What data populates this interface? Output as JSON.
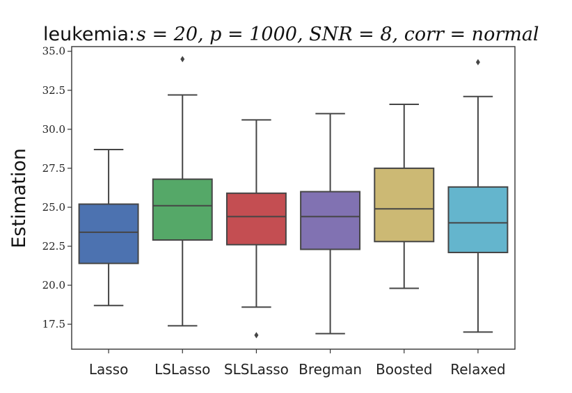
{
  "chart_data": {
    "type": "box",
    "title_prefix": "leukemia:",
    "title_math": "s = 20, p = 1000, SNR = 8, corr = normal",
    "xlabel": "",
    "ylabel": "Estimation",
    "ylim": [
      15.9,
      35.3
    ],
    "yticks": [
      "17.5",
      "20.0",
      "22.5",
      "25.0",
      "27.5",
      "30.0",
      "32.5",
      "35.0"
    ],
    "grid": false,
    "categories": [
      "Lasso",
      "LSLasso",
      "SLSLasso",
      "Bregman",
      "Boosted",
      "Relaxed"
    ],
    "colors": [
      "#4c72b0",
      "#55a868",
      "#c44e52",
      "#8172b2",
      "#ccb974",
      "#64b5cd"
    ],
    "boxes": [
      {
        "whisker_low": 18.7,
        "q1": 21.4,
        "median": 23.4,
        "q3": 25.2,
        "whisker_high": 28.7,
        "outliers": []
      },
      {
        "whisker_low": 17.4,
        "q1": 22.9,
        "median": 25.1,
        "q3": 26.8,
        "whisker_high": 32.2,
        "outliers": [
          34.5
        ]
      },
      {
        "whisker_low": 18.6,
        "q1": 22.6,
        "median": 24.4,
        "q3": 25.9,
        "whisker_high": 30.6,
        "outliers": [
          16.8
        ]
      },
      {
        "whisker_low": 16.9,
        "q1": 22.3,
        "median": 24.4,
        "q3": 26.0,
        "whisker_high": 31.0,
        "outliers": []
      },
      {
        "whisker_low": 19.8,
        "q1": 22.8,
        "median": 24.9,
        "q3": 27.5,
        "whisker_high": 31.6,
        "outliers": []
      },
      {
        "whisker_low": 17.0,
        "q1": 22.1,
        "median": 24.0,
        "q3": 26.3,
        "whisker_high": 32.1,
        "outliers": [
          34.3
        ]
      }
    ]
  }
}
